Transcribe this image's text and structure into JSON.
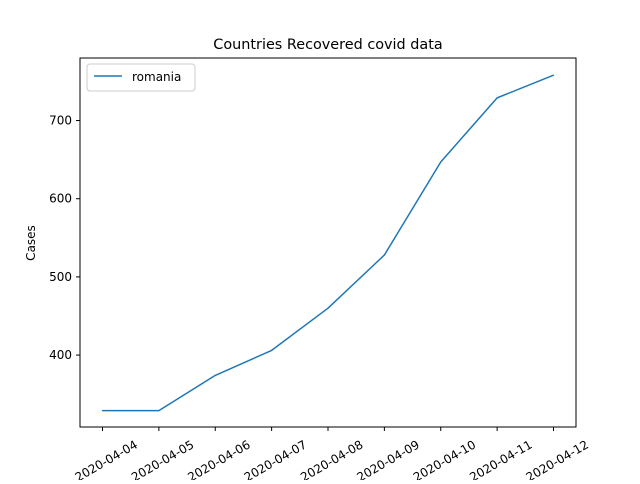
{
  "chart_data": {
    "type": "line",
    "title": "Countries Recovered covid data",
    "xlabel": "",
    "ylabel": "Cases",
    "x": [
      "2020-04-04",
      "2020-04-05",
      "2020-04-06",
      "2020-04-07",
      "2020-04-08",
      "2020-04-09",
      "2020-04-10",
      "2020-04-11",
      "2020-04-12"
    ],
    "series": [
      {
        "name": "romania",
        "color": "#1f77b4",
        "values": [
          329,
          329,
          374,
          406,
          460,
          528,
          647,
          729,
          758
        ]
      }
    ],
    "yticks": [
      400,
      500,
      600,
      700
    ],
    "ylim": [
      308,
      780
    ],
    "grid": false,
    "legend": "top-left"
  }
}
